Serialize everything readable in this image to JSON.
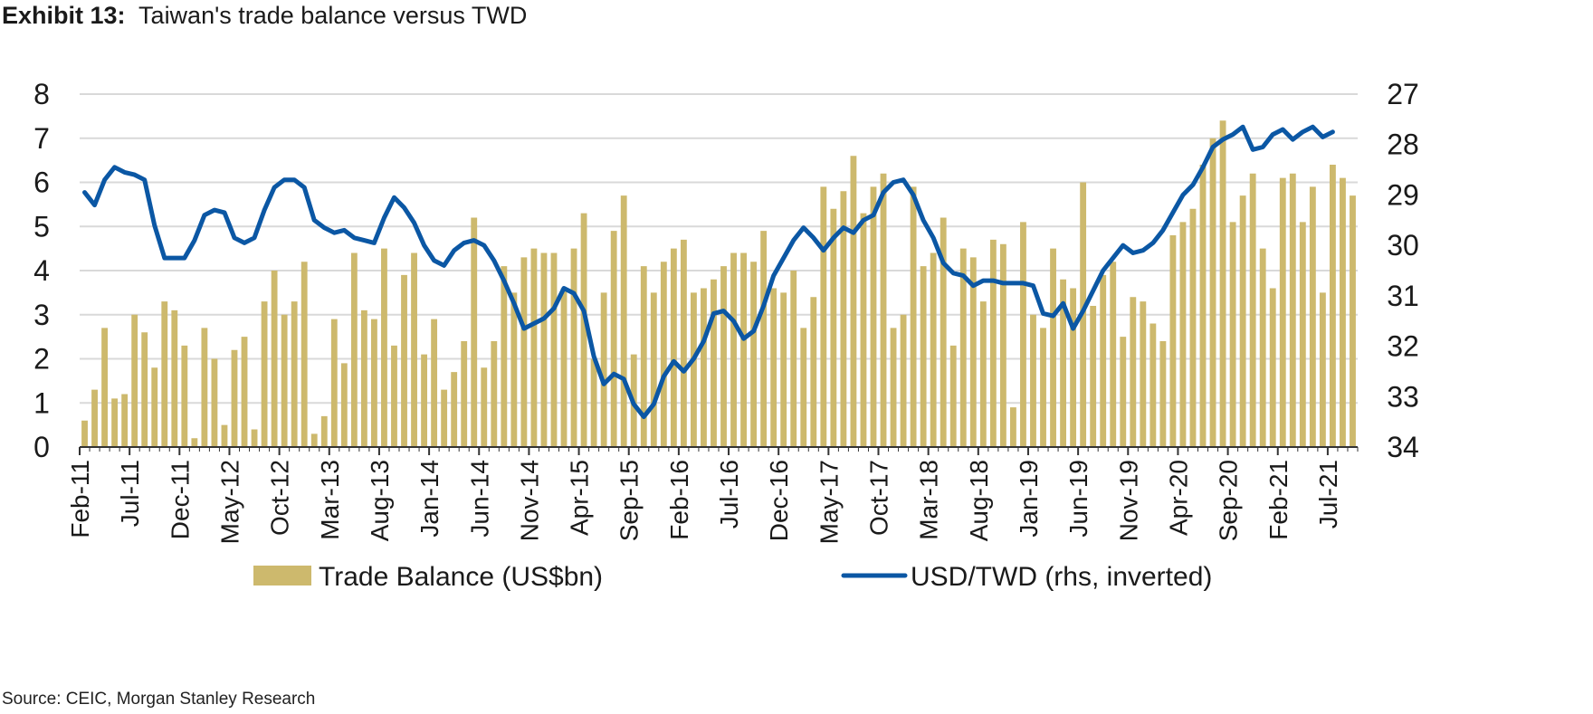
{
  "title": {
    "label": "Exhibit 13:",
    "text": "Taiwan's trade balance versus TWD"
  },
  "source": "Source: CEIC, Morgan Stanley Research",
  "chart_data": {
    "type": "bar",
    "colors": {
      "bar": "#CDB96D",
      "line": "#0B57A4",
      "grid": "#D9D9D9",
      "axis": "#333333"
    },
    "x_tick_labels": [
      "Feb-11",
      "Jul-11",
      "Dec-11",
      "May-12",
      "Oct-12",
      "Mar-13",
      "Aug-13",
      "Jan-14",
      "Jun-14",
      "Nov-14",
      "Apr-15",
      "Sep-15",
      "Feb-16",
      "Jul-16",
      "Dec-16",
      "May-17",
      "Oct-17",
      "Mar-18",
      "Aug-18",
      "Jan-19",
      "Jun-19",
      "Nov-19",
      "Apr-20",
      "Sep-20",
      "Feb-21",
      "Jul-21"
    ],
    "y_left": {
      "min": 0,
      "max": 8,
      "ticks": [
        "0",
        "1",
        "2",
        "3",
        "4",
        "5",
        "6",
        "7",
        "8"
      ]
    },
    "y_right": {
      "min": 27,
      "max": 34,
      "inverted": true,
      "ticks": [
        "27",
        "28",
        "29",
        "30",
        "31",
        "32",
        "33",
        "34"
      ]
    },
    "grid": true,
    "legend": {
      "position": "bottom",
      "bar_label": "Trade Balance (US$bn)",
      "line_label": "USD/TWD (rhs, inverted)"
    },
    "series": [
      {
        "name": "Trade Balance (US$bn)",
        "axis": "left",
        "kind": "bar",
        "values": [
          0.6,
          1.3,
          2.7,
          1.1,
          1.2,
          3.0,
          2.6,
          1.8,
          3.3,
          3.1,
          2.3,
          0.2,
          2.7,
          2.0,
          0.5,
          2.2,
          2.5,
          0.4,
          3.3,
          4.0,
          3.0,
          3.3,
          4.2,
          0.3,
          0.7,
          2.9,
          1.9,
          4.4,
          3.1,
          2.9,
          4.5,
          2.3,
          3.9,
          4.4,
          2.1,
          2.9,
          1.3,
          1.7,
          2.4,
          5.2,
          1.8,
          2.4,
          4.1,
          3.5,
          4.3,
          4.5,
          4.4,
          4.4,
          3.6,
          4.5,
          5.3,
          2.0,
          3.5,
          4.9,
          5.7,
          2.1,
          4.1,
          3.5,
          4.2,
          4.5,
          4.7,
          3.5,
          3.6,
          3.8,
          4.1,
          4.4,
          4.4,
          4.2,
          4.9,
          3.6,
          3.5,
          4.0,
          2.7,
          3.4,
          5.9,
          5.4,
          5.8,
          6.6,
          5.3,
          5.9,
          6.2,
          2.7,
          3.0,
          5.9,
          4.1,
          4.4,
          5.2,
          2.3,
          4.5,
          4.3,
          3.3,
          4.7,
          4.6,
          0.9,
          5.1,
          3.0,
          2.7,
          4.5,
          3.8,
          3.6,
          6.0,
          3.2,
          3.9,
          4.2,
          2.5,
          3.4,
          3.3,
          2.8,
          2.4,
          4.8,
          5.1,
          5.4,
          6.4,
          7.0,
          7.4,
          5.1,
          5.7,
          6.2,
          4.5,
          3.6,
          6.1,
          6.2,
          5.1,
          5.9,
          3.5,
          6.4,
          6.1,
          5.7
        ]
      },
      {
        "name": "USD/TWD (rhs, inverted)",
        "axis": "right",
        "kind": "line",
        "values": [
          28.95,
          29.2,
          28.7,
          28.45,
          28.55,
          28.6,
          28.7,
          29.6,
          30.25,
          30.25,
          30.25,
          29.9,
          29.4,
          29.3,
          29.35,
          29.85,
          29.95,
          29.85,
          29.3,
          28.85,
          28.7,
          28.7,
          28.85,
          29.5,
          29.65,
          29.75,
          29.7,
          29.85,
          29.9,
          29.95,
          29.45,
          29.05,
          29.25,
          29.55,
          30.0,
          30.3,
          30.4,
          30.1,
          29.95,
          29.9,
          30.0,
          30.3,
          30.7,
          31.15,
          31.65,
          31.55,
          31.45,
          31.25,
          30.85,
          30.95,
          31.3,
          32.2,
          32.75,
          32.55,
          32.65,
          33.15,
          33.4,
          33.15,
          32.6,
          32.3,
          32.5,
          32.25,
          31.9,
          31.35,
          31.3,
          31.5,
          31.85,
          31.7,
          31.2,
          30.6,
          30.25,
          29.9,
          29.65,
          29.85,
          30.1,
          29.85,
          29.65,
          29.75,
          29.5,
          29.4,
          28.95,
          28.75,
          28.7,
          29.0,
          29.5,
          29.85,
          30.35,
          30.55,
          30.6,
          30.8,
          30.7,
          30.7,
          30.75,
          30.75,
          30.75,
          30.8,
          31.35,
          31.4,
          31.15,
          31.65,
          31.3,
          30.9,
          30.5,
          30.25,
          30.0,
          30.15,
          30.1,
          29.95,
          29.7,
          29.35,
          29.0,
          28.8,
          28.45,
          28.05,
          27.9,
          27.8,
          27.65,
          28.1,
          28.05,
          27.8,
          27.7,
          27.9,
          27.75,
          27.65,
          27.85,
          27.75
        ]
      }
    ]
  }
}
